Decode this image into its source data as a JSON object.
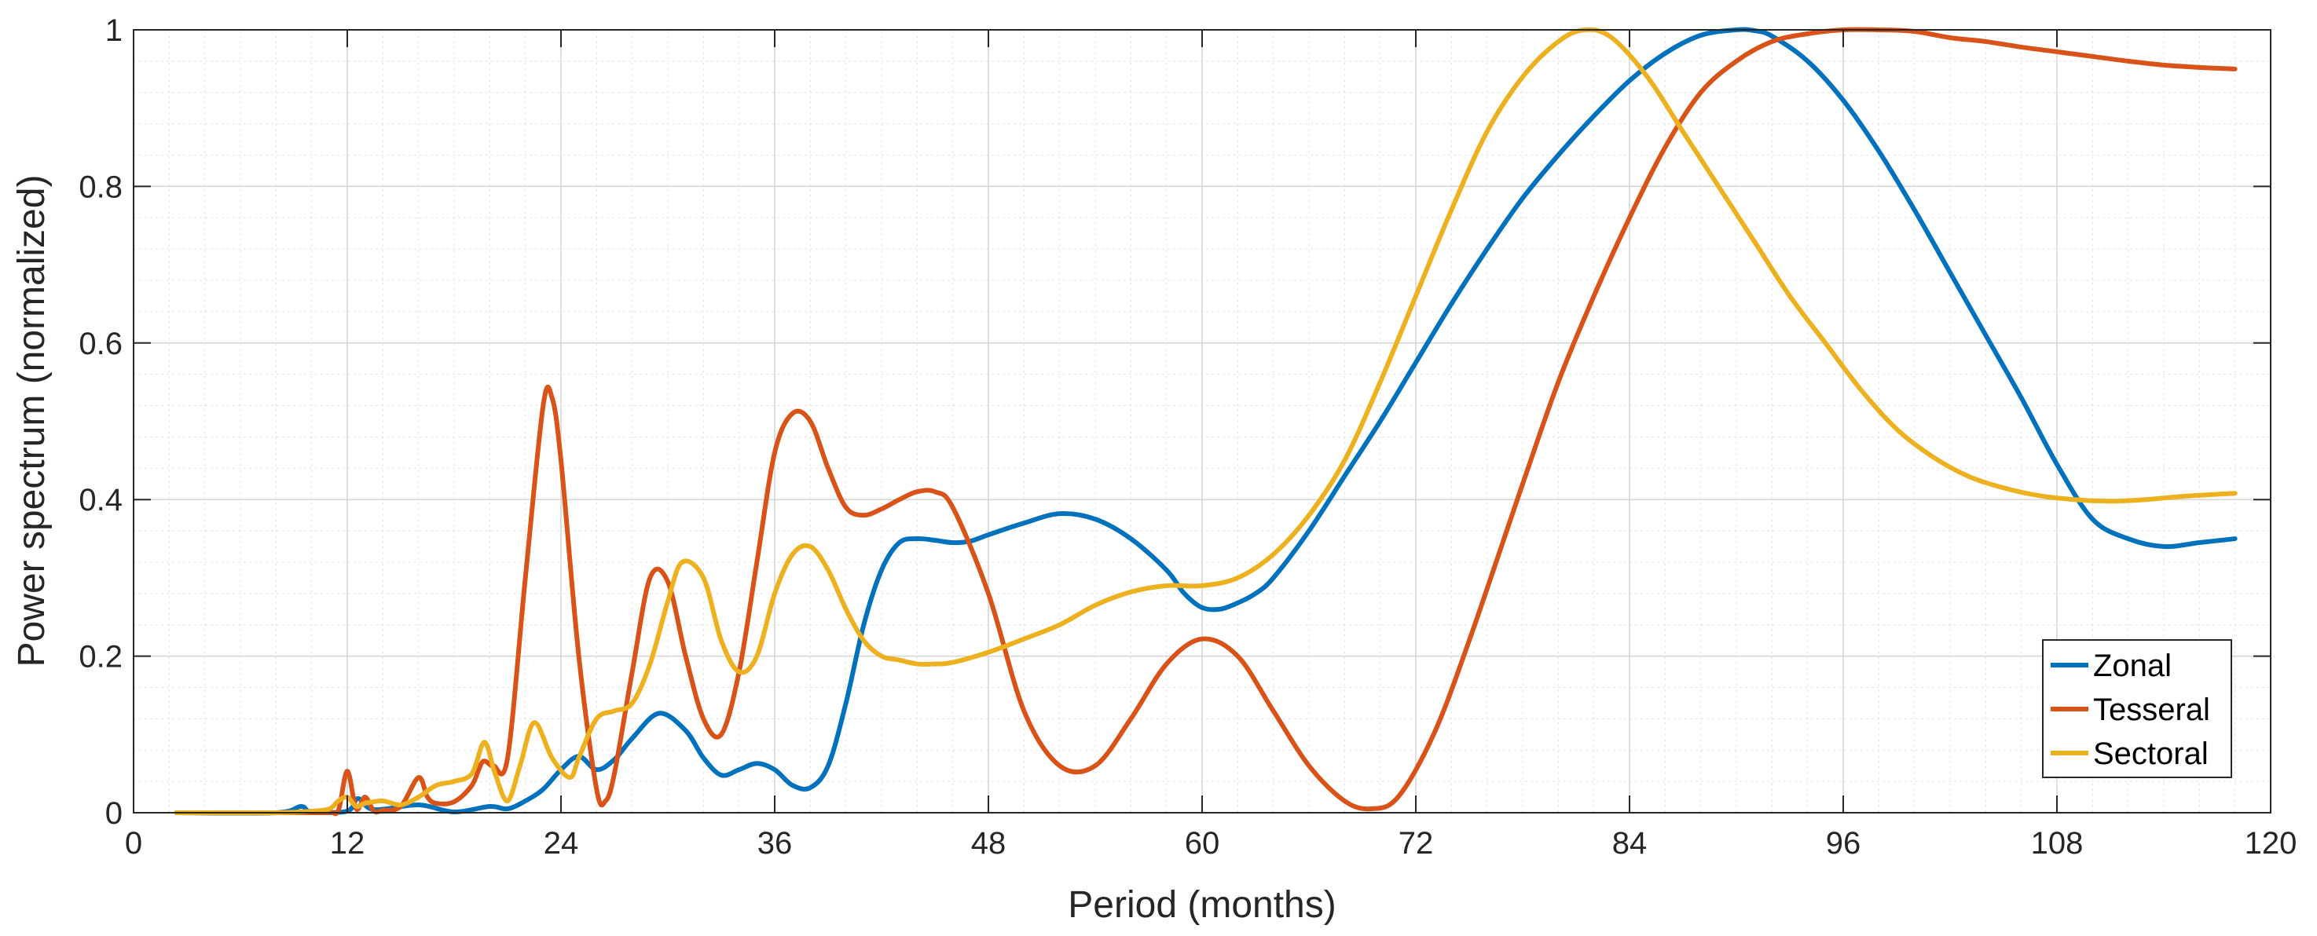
{
  "chart_data": {
    "type": "line",
    "title": "",
    "xlabel": "Period (months)",
    "ylabel": "Power spectrum (normalized)",
    "xlim": [
      0,
      120
    ],
    "ylim": [
      0,
      1
    ],
    "x_ticks": [
      0,
      12,
      24,
      36,
      48,
      60,
      72,
      84,
      96,
      108,
      120
    ],
    "y_ticks": [
      0,
      0.2,
      0.4,
      0.6,
      0.8,
      1
    ],
    "y_tick_labels": [
      "0",
      "0.2",
      "0.4",
      "0.6",
      "0.8",
      "1"
    ],
    "grid": true,
    "minor_grid": true,
    "legend_position": "bottom-right",
    "series": [
      {
        "name": "Zonal",
        "color": "#0072BD",
        "x": [
          2.4,
          8,
          9.4,
          10,
          12,
          12.6,
          13.5,
          16,
          18,
          20,
          21,
          22,
          23,
          24,
          25,
          26,
          27,
          28,
          29.5,
          31,
          32,
          33,
          34,
          35,
          36,
          37,
          38,
          39,
          40,
          41,
          42,
          43,
          44,
          45,
          46,
          47,
          48,
          50,
          52,
          54,
          56,
          58,
          59,
          60,
          61,
          62,
          63,
          64,
          66,
          68,
          70,
          72,
          74,
          76,
          78,
          80,
          82,
          84,
          86,
          88,
          90,
          91,
          92,
          94,
          96,
          98,
          100,
          102,
          104,
          106,
          108,
          110,
          112,
          114,
          116,
          118
        ],
        "y": [
          0,
          0,
          0.008,
          0.001,
          0.002,
          0.018,
          0.004,
          0.01,
          0.001,
          0.008,
          0.005,
          0.015,
          0.03,
          0.055,
          0.072,
          0.055,
          0.068,
          0.095,
          0.127,
          0.105,
          0.07,
          0.048,
          0.055,
          0.063,
          0.055,
          0.035,
          0.032,
          0.06,
          0.14,
          0.24,
          0.31,
          0.345,
          0.35,
          0.348,
          0.345,
          0.347,
          0.355,
          0.37,
          0.382,
          0.375,
          0.35,
          0.31,
          0.28,
          0.262,
          0.26,
          0.268,
          0.28,
          0.3,
          0.36,
          0.43,
          0.5,
          0.575,
          0.65,
          0.72,
          0.785,
          0.84,
          0.89,
          0.935,
          0.97,
          0.993,
          1.0,
          0.999,
          0.992,
          0.96,
          0.91,
          0.845,
          0.77,
          0.69,
          0.61,
          0.53,
          0.445,
          0.375,
          0.35,
          0.34,
          0.345,
          0.35
        ]
      },
      {
        "name": "Tesseral",
        "color": "#D95319",
        "x": [
          2.4,
          10,
          11,
          11.5,
          12,
          12.5,
          13,
          13.5,
          14,
          15,
          16,
          16.5,
          17,
          18,
          19,
          19.6,
          20.2,
          21,
          22,
          23,
          23.5,
          24,
          25,
          26,
          26.5,
          27,
          28,
          29,
          30,
          31,
          32,
          33,
          34,
          35,
          36,
          37,
          38,
          39,
          40,
          41,
          42,
          43,
          44,
          45,
          46,
          48,
          50,
          52,
          54,
          56,
          58,
          60,
          62,
          64,
          66,
          68,
          69.5,
          71,
          73,
          75,
          78,
          80,
          82,
          84,
          86,
          88,
          90,
          92,
          94,
          96,
          98,
          100,
          102,
          104,
          106,
          108,
          110,
          112,
          114,
          116,
          118
        ],
        "y": [
          0,
          0,
          0.001,
          0.003,
          0.053,
          0.005,
          0.02,
          0.002,
          0.003,
          0.008,
          0.045,
          0.02,
          0.012,
          0.014,
          0.035,
          0.065,
          0.06,
          0.07,
          0.3,
          0.52,
          0.53,
          0.45,
          0.2,
          0.03,
          0.015,
          0.05,
          0.18,
          0.3,
          0.295,
          0.2,
          0.12,
          0.1,
          0.18,
          0.32,
          0.46,
          0.51,
          0.5,
          0.44,
          0.39,
          0.38,
          0.388,
          0.4,
          0.41,
          0.41,
          0.39,
          0.28,
          0.13,
          0.06,
          0.06,
          0.12,
          0.19,
          0.222,
          0.2,
          0.13,
          0.06,
          0.015,
          0.005,
          0.02,
          0.1,
          0.22,
          0.42,
          0.55,
          0.66,
          0.76,
          0.85,
          0.92,
          0.96,
          0.985,
          0.995,
          1.0,
          1.0,
          0.998,
          0.99,
          0.985,
          0.978,
          0.972,
          0.966,
          0.96,
          0.955,
          0.952,
          0.95
        ]
      },
      {
        "name": "Sectoral",
        "color": "#EDB120",
        "x": [
          2.4,
          8,
          10,
          11,
          11.5,
          12,
          12.5,
          13,
          14,
          15,
          16,
          17,
          18,
          19,
          19.7,
          20.3,
          21,
          21.7,
          22.5,
          23.5,
          24.5,
          25,
          26,
          27,
          28,
          29,
          30,
          30.8,
          32,
          33,
          34,
          35,
          36,
          37,
          38,
          39,
          40,
          41,
          42,
          43,
          44,
          45,
          46,
          48,
          50,
          52,
          54,
          56,
          58,
          60,
          62,
          64,
          66,
          68,
          70,
          72,
          74,
          76,
          78,
          80,
          81.5,
          83,
          85,
          87,
          89,
          91,
          93,
          95,
          97,
          99,
          101,
          103,
          105,
          107,
          109,
          111,
          113,
          115,
          118
        ],
        "y": [
          0,
          0,
          0.002,
          0.005,
          0.015,
          0.02,
          0.008,
          0.012,
          0.015,
          0.01,
          0.02,
          0.035,
          0.04,
          0.05,
          0.09,
          0.05,
          0.015,
          0.06,
          0.115,
          0.07,
          0.045,
          0.07,
          0.12,
          0.13,
          0.14,
          0.19,
          0.27,
          0.32,
          0.3,
          0.22,
          0.18,
          0.2,
          0.28,
          0.33,
          0.34,
          0.31,
          0.26,
          0.22,
          0.2,
          0.195,
          0.19,
          0.19,
          0.192,
          0.205,
          0.222,
          0.24,
          0.265,
          0.282,
          0.29,
          0.29,
          0.3,
          0.33,
          0.38,
          0.45,
          0.55,
          0.66,
          0.77,
          0.87,
          0.94,
          0.985,
          1.0,
          0.99,
          0.94,
          0.87,
          0.8,
          0.73,
          0.66,
          0.6,
          0.54,
          0.49,
          0.455,
          0.43,
          0.415,
          0.405,
          0.4,
          0.398,
          0.4,
          0.404,
          0.408
        ]
      }
    ]
  }
}
